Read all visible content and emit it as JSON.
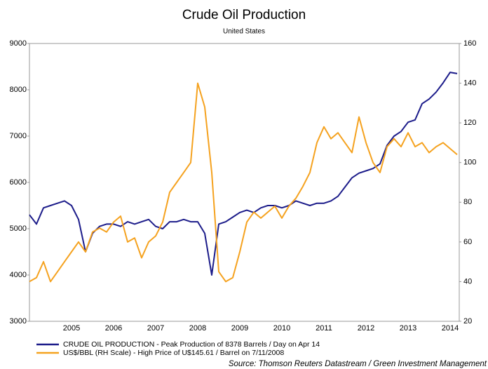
{
  "chart_data": {
    "type": "line",
    "title": "Crude Oil Production",
    "subtitle": "United States",
    "source": "Source: Thomson Reuters Datastream / Green Investment Management",
    "categories": [
      null,
      null,
      null,
      null,
      null,
      null,
      "2005",
      null,
      null,
      null,
      null,
      null,
      "2006",
      null,
      null,
      null,
      null,
      null,
      "2007",
      null,
      null,
      null,
      null,
      null,
      "2008",
      null,
      null,
      null,
      null,
      null,
      "2009",
      null,
      null,
      null,
      null,
      null,
      "2010",
      null,
      null,
      null,
      null,
      null,
      "2011",
      null,
      null,
      null,
      null,
      null,
      "2012",
      null,
      null,
      null,
      null,
      null,
      "2013",
      null,
      null,
      null,
      null,
      null,
      "2014",
      null
    ],
    "series": [
      {
        "name": "CRUDE OIL PRODUCTION - Peak Production of 8378 Barrels / Day on Apr 14",
        "color": "#1c1c8a",
        "axis": "y",
        "values": [
          5300,
          5100,
          5450,
          5500,
          5550,
          5600,
          5500,
          5200,
          4500,
          4900,
          5050,
          5100,
          5100,
          5050,
          5150,
          5100,
          5150,
          5200,
          5050,
          5000,
          5150,
          5150,
          5200,
          5150,
          5150,
          4900,
          4000,
          5100,
          5150,
          5250,
          5350,
          5400,
          5350,
          5450,
          5500,
          5500,
          5450,
          5500,
          5600,
          5550,
          5500,
          5550,
          5550,
          5600,
          5700,
          5900,
          6100,
          6200,
          6250,
          6300,
          6400,
          6800,
          7000,
          7100,
          7300,
          7350,
          7700,
          7800,
          7950,
          8150,
          8378,
          8350
        ]
      },
      {
        "name": "US$/BBL (RH Scale) - High Price of U$145.61 / Barrel on 7/11/2008",
        "color": "#f5a21f",
        "axis": "y2",
        "values": [
          40,
          42,
          50,
          40,
          45,
          50,
          55,
          60,
          55,
          65,
          67,
          65,
          70,
          73,
          60,
          62,
          52,
          60,
          63,
          70,
          85,
          90,
          95,
          100,
          140,
          128,
          95,
          45,
          40,
          42,
          55,
          70,
          75,
          72,
          75,
          78,
          72,
          78,
          82,
          88,
          95,
          110,
          118,
          112,
          115,
          110,
          105,
          123,
          110,
          100,
          95,
          108,
          112,
          108,
          115,
          108,
          110,
          105,
          108,
          110,
          107,
          104
        ]
      }
    ],
    "ylim": [
      3000,
      9000
    ],
    "yticks": [
      3000,
      4000,
      5000,
      6000,
      7000,
      8000,
      9000
    ],
    "y2lim": [
      20,
      160
    ],
    "y2ticks": [
      20,
      40,
      60,
      80,
      100,
      120,
      140,
      160
    ],
    "grid": false
  }
}
